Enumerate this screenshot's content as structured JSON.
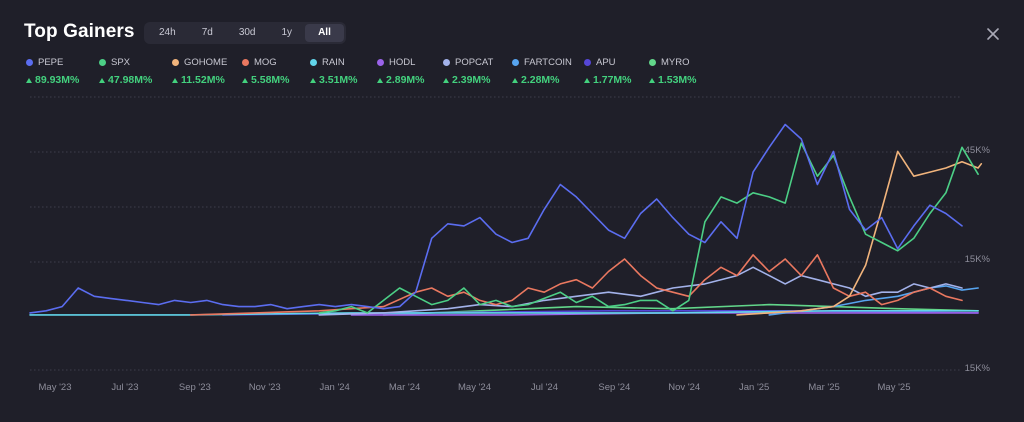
{
  "header": {
    "title": "Top Gainers",
    "tabs": [
      "24h",
      "7d",
      "30d",
      "1y",
      "All"
    ],
    "active_tab": "All"
  },
  "legend": [
    {
      "name": "PEPE",
      "change": "89.93M%",
      "color": "#5b6df0"
    },
    {
      "name": "SPX",
      "change": "47.98M%",
      "color": "#4ccf86"
    },
    {
      "name": "GOHOME",
      "change": "11.52M%",
      "color": "#f1b47c"
    },
    {
      "name": "MOG",
      "change": "5.58M%",
      "color": "#ea7860"
    },
    {
      "name": "RAIN",
      "change": "3.51M%",
      "color": "#62d5ea"
    },
    {
      "name": "HODL",
      "change": "2.89M%",
      "color": "#9b63ea"
    },
    {
      "name": "POPCAT",
      "change": "2.39M%",
      "color": "#a3b2ea"
    },
    {
      "name": "FARTCOIN",
      "change": "2.28M%",
      "color": "#57a4ef"
    },
    {
      "name": "APU",
      "change": "1.77M%",
      "color": "#5546d6"
    },
    {
      "name": "MYRO",
      "change": "1.53M%",
      "color": "#62d68a"
    }
  ],
  "chart_data": {
    "type": "line",
    "xlabel": "",
    "ylabel": "",
    "x_ticks": [
      "May '23",
      "Jul '23",
      "Sep '23",
      "Nov '23",
      "Jan '24",
      "Mar '24",
      "May '24",
      "Jul '24",
      "Sep '24",
      "Nov '24",
      "Jan '25",
      "Mar '25",
      "May '25"
    ],
    "y_tick_labels": [
      "45K%",
      "15K%",
      "15K%"
    ],
    "x_range": [
      0,
      58
    ],
    "y_range": [
      0,
      100
    ],
    "grid": true,
    "series": [
      {
        "name": "PEPE",
        "color": "#5b6df0",
        "points": [
          [
            0,
            2
          ],
          [
            1,
            3
          ],
          [
            2,
            5
          ],
          [
            3,
            14
          ],
          [
            4,
            10
          ],
          [
            5,
            9
          ],
          [
            6,
            8
          ],
          [
            7,
            7
          ],
          [
            8,
            6
          ],
          [
            9,
            8
          ],
          [
            10,
            7
          ],
          [
            11,
            8
          ],
          [
            12,
            6
          ],
          [
            13,
            5
          ],
          [
            14,
            5
          ],
          [
            15,
            6
          ],
          [
            16,
            4
          ],
          [
            17,
            5
          ],
          [
            18,
            6
          ],
          [
            19,
            5
          ],
          [
            20,
            6
          ],
          [
            21,
            5
          ],
          [
            22,
            4
          ],
          [
            23,
            5
          ],
          [
            24,
            12
          ],
          [
            25,
            38
          ],
          [
            26,
            45
          ],
          [
            27,
            44
          ],
          [
            28,
            48
          ],
          [
            29,
            40
          ],
          [
            30,
            36
          ],
          [
            31,
            38
          ],
          [
            32,
            52
          ],
          [
            33,
            64
          ],
          [
            34,
            58
          ],
          [
            35,
            50
          ],
          [
            36,
            42
          ],
          [
            37,
            38
          ],
          [
            38,
            50
          ],
          [
            39,
            57
          ],
          [
            40,
            48
          ],
          [
            41,
            40
          ],
          [
            42,
            36
          ],
          [
            43,
            46
          ],
          [
            44,
            38
          ],
          [
            45,
            70
          ],
          [
            46,
            82
          ],
          [
            47,
            93
          ],
          [
            48,
            86
          ],
          [
            49,
            64
          ],
          [
            50,
            80
          ],
          [
            51,
            52
          ],
          [
            52,
            42
          ],
          [
            53,
            48
          ],
          [
            54,
            33
          ],
          [
            55,
            44
          ],
          [
            56,
            54
          ],
          [
            57,
            50
          ],
          [
            58,
            44
          ]
        ]
      },
      {
        "name": "SPX",
        "color": "#4ccf86",
        "points": [
          [
            18,
            2
          ],
          [
            19,
            3
          ],
          [
            20,
            5
          ],
          [
            21,
            2
          ],
          [
            22,
            8
          ],
          [
            23,
            14
          ],
          [
            24,
            10
          ],
          [
            25,
            6
          ],
          [
            26,
            8
          ],
          [
            27,
            14
          ],
          [
            28,
            6
          ],
          [
            29,
            8
          ],
          [
            30,
            5
          ],
          [
            31,
            6
          ],
          [
            32,
            9
          ],
          [
            33,
            12
          ],
          [
            34,
            7
          ],
          [
            35,
            10
          ],
          [
            36,
            5
          ],
          [
            37,
            6
          ],
          [
            38,
            8
          ],
          [
            39,
            8
          ],
          [
            40,
            3
          ],
          [
            41,
            8
          ],
          [
            42,
            46
          ],
          [
            43,
            58
          ],
          [
            44,
            55
          ],
          [
            45,
            60
          ],
          [
            46,
            58
          ],
          [
            47,
            55
          ],
          [
            48,
            84
          ],
          [
            49,
            68
          ],
          [
            50,
            78
          ],
          [
            51,
            58
          ],
          [
            52,
            40
          ],
          [
            53,
            36
          ],
          [
            54,
            32
          ],
          [
            55,
            38
          ],
          [
            56,
            50
          ],
          [
            57,
            60
          ],
          [
            58,
            82
          ],
          [
            59,
            69
          ]
        ]
      },
      {
        "name": "GOHOME",
        "color": "#f1b47c",
        "points": [
          [
            44,
            1
          ],
          [
            46,
            2
          ],
          [
            48,
            3
          ],
          [
            50,
            5
          ],
          [
            51,
            10
          ],
          [
            52,
            25
          ],
          [
            53,
            52
          ],
          [
            54,
            80
          ],
          [
            55,
            68
          ],
          [
            56,
            70
          ],
          [
            57,
            72
          ],
          [
            58,
            75
          ],
          [
            59,
            72
          ],
          [
            60,
            74
          ]
        ]
      },
      {
        "name": "MOG",
        "color": "#ea7860",
        "points": [
          [
            10,
            1
          ],
          [
            14,
            2
          ],
          [
            18,
            3
          ],
          [
            22,
            5
          ],
          [
            24,
            12
          ],
          [
            25,
            14
          ],
          [
            26,
            10
          ],
          [
            27,
            12
          ],
          [
            28,
            8
          ],
          [
            29,
            6
          ],
          [
            30,
            8
          ],
          [
            31,
            14
          ],
          [
            32,
            12
          ],
          [
            33,
            16
          ],
          [
            34,
            18
          ],
          [
            35,
            14
          ],
          [
            36,
            22
          ],
          [
            37,
            28
          ],
          [
            38,
            20
          ],
          [
            39,
            14
          ],
          [
            40,
            12
          ],
          [
            41,
            10
          ],
          [
            42,
            18
          ],
          [
            43,
            24
          ],
          [
            44,
            20
          ],
          [
            45,
            30
          ],
          [
            46,
            22
          ],
          [
            47,
            28
          ],
          [
            48,
            20
          ],
          [
            49,
            30
          ],
          [
            50,
            14
          ],
          [
            51,
            10
          ],
          [
            52,
            12
          ],
          [
            53,
            6
          ],
          [
            54,
            8
          ],
          [
            55,
            12
          ],
          [
            56,
            14
          ],
          [
            57,
            10
          ],
          [
            58,
            8
          ]
        ]
      },
      {
        "name": "POPCAT",
        "color": "#a3b2ea",
        "points": [
          [
            18,
            1
          ],
          [
            22,
            2
          ],
          [
            26,
            4
          ],
          [
            28,
            6
          ],
          [
            30,
            5
          ],
          [
            32,
            8
          ],
          [
            34,
            10
          ],
          [
            36,
            12
          ],
          [
            38,
            10
          ],
          [
            40,
            14
          ],
          [
            42,
            16
          ],
          [
            44,
            20
          ],
          [
            45,
            24
          ],
          [
            46,
            20
          ],
          [
            47,
            16
          ],
          [
            48,
            20
          ],
          [
            49,
            18
          ],
          [
            50,
            16
          ],
          [
            51,
            14
          ],
          [
            52,
            10
          ],
          [
            53,
            12
          ],
          [
            54,
            12
          ],
          [
            55,
            16
          ],
          [
            56,
            14
          ],
          [
            57,
            16
          ],
          [
            58,
            14
          ]
        ]
      },
      {
        "name": "FARTCOIN",
        "color": "#57a4ef",
        "points": [
          [
            46,
            1
          ],
          [
            48,
            3
          ],
          [
            50,
            5
          ],
          [
            52,
            8
          ],
          [
            54,
            10
          ],
          [
            55,
            12
          ],
          [
            56,
            14
          ],
          [
            57,
            15
          ],
          [
            58,
            13
          ],
          [
            59,
            14
          ]
        ]
      },
      {
        "name": "RAIN",
        "color": "#62d5ea",
        "points": [
          [
            0,
            1
          ],
          [
            10,
            1
          ],
          [
            20,
            2
          ],
          [
            30,
            2
          ],
          [
            40,
            2
          ],
          [
            50,
            3
          ],
          [
            55,
            3
          ],
          [
            59,
            3
          ]
        ]
      },
      {
        "name": "HODL",
        "color": "#9b63ea",
        "points": [
          [
            20,
            1
          ],
          [
            30,
            1
          ],
          [
            40,
            2
          ],
          [
            50,
            2
          ],
          [
            59,
            2
          ]
        ]
      },
      {
        "name": "APU",
        "color": "#5546d6",
        "points": [
          [
            12,
            1
          ],
          [
            24,
            2
          ],
          [
            36,
            3
          ],
          [
            48,
            3
          ],
          [
            59,
            2
          ]
        ]
      },
      {
        "name": "MYRO",
        "color": "#62d68a",
        "points": [
          [
            22,
            1
          ],
          [
            28,
            3
          ],
          [
            34,
            5
          ],
          [
            40,
            4
          ],
          [
            46,
            6
          ],
          [
            50,
            5
          ],
          [
            54,
            4
          ],
          [
            59,
            3
          ]
        ]
      }
    ]
  }
}
